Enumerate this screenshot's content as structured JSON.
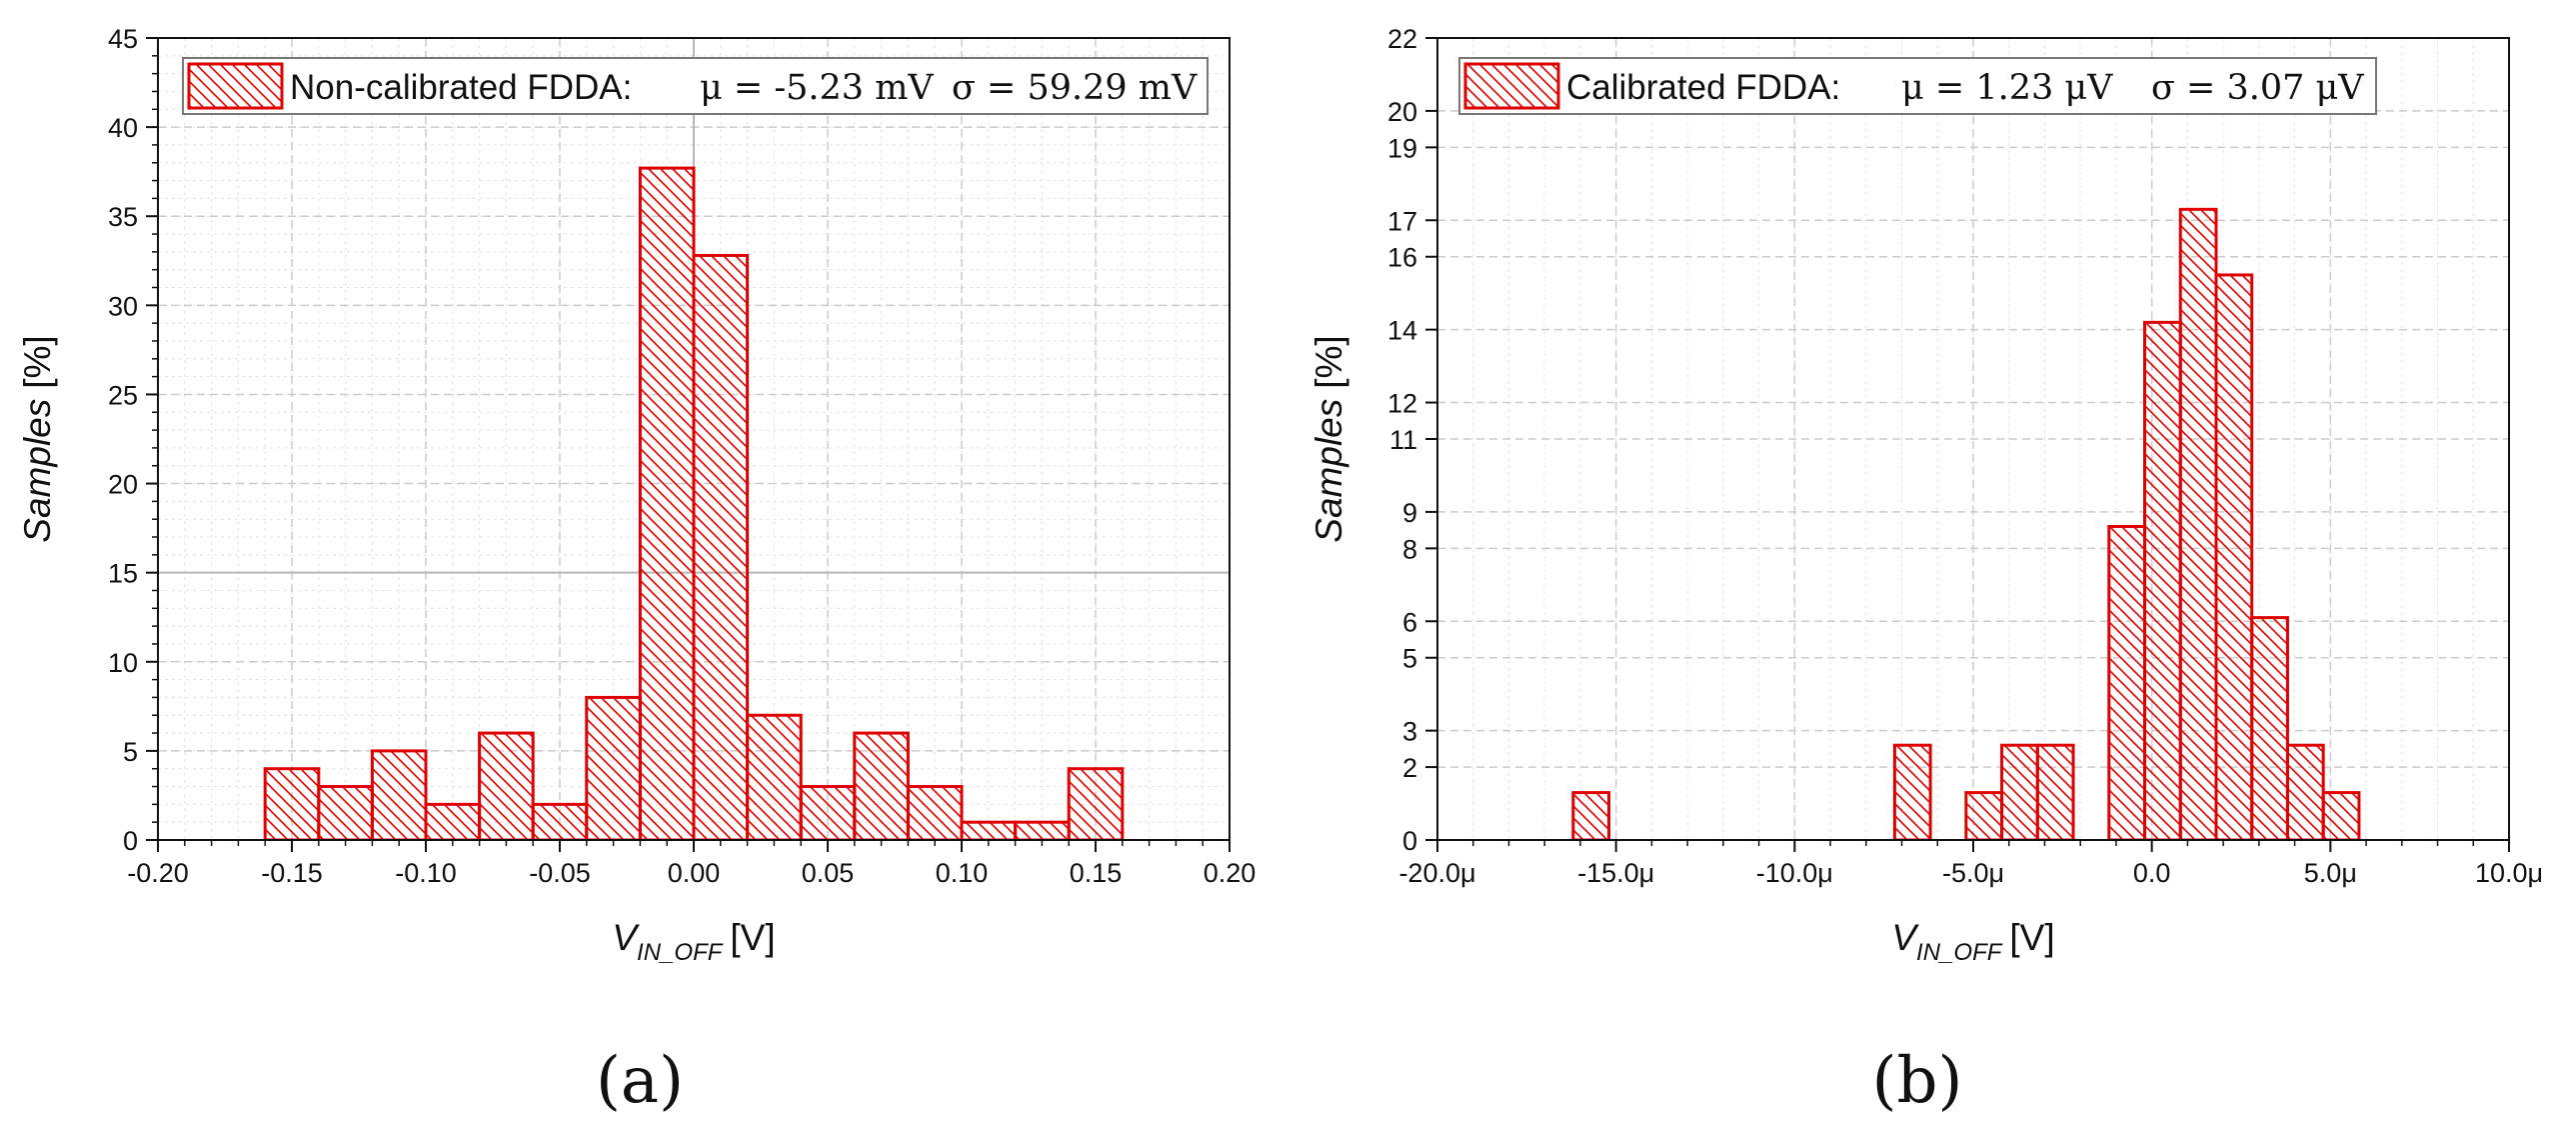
{
  "chart_data": [
    {
      "panel_label": "(a)",
      "type": "bar",
      "series_name": "Non-calibrated FDDA",
      "legend": {
        "name": "Non-calibrated FDDA:",
        "mu": "μ = -5.23 mV",
        "sigma": "σ = 59.29 mV",
        "placement": "top-center"
      },
      "xlabel": {
        "var": "V",
        "sub": "IN_OFF",
        "unit": "[V]"
      },
      "ylabel": {
        "var": "Samples",
        "unit": "[%]"
      },
      "xlim": [
        -0.2,
        0.2
      ],
      "ylim": [
        0,
        45
      ],
      "xticks": [
        {
          "v": -0.2,
          "label": "-0.20"
        },
        {
          "v": -0.15,
          "label": "-0.15"
        },
        {
          "v": -0.1,
          "label": "-0.10"
        },
        {
          "v": -0.05,
          "label": "-0.05"
        },
        {
          "v": 0.0,
          "label": "0.00"
        },
        {
          "v": 0.05,
          "label": "0.05"
        },
        {
          "v": 0.1,
          "label": "0.10"
        },
        {
          "v": 0.15,
          "label": "0.15"
        },
        {
          "v": 0.2,
          "label": "0.20"
        }
      ],
      "yticks": [
        {
          "v": 0,
          "label": "0"
        },
        {
          "v": 5,
          "label": "5"
        },
        {
          "v": 10,
          "label": "10"
        },
        {
          "v": 15,
          "label": "15"
        },
        {
          "v": 20,
          "label": "20"
        },
        {
          "v": 25,
          "label": "25"
        },
        {
          "v": 30,
          "label": "30"
        },
        {
          "v": 35,
          "label": "35"
        },
        {
          "v": 40,
          "label": "40"
        },
        {
          "v": 45,
          "label": "45"
        }
      ],
      "x_minor_step": 0.01,
      "y_minor_step": 1,
      "highlight_gridlines": {
        "x": 0.0,
        "y": 15
      },
      "bins": [
        {
          "x0": -0.16,
          "x1": -0.14,
          "value": 4
        },
        {
          "x0": -0.14,
          "x1": -0.12,
          "value": 3
        },
        {
          "x0": -0.12,
          "x1": -0.1,
          "value": 5
        },
        {
          "x0": -0.1,
          "x1": -0.08,
          "value": 2
        },
        {
          "x0": -0.08,
          "x1": -0.06,
          "value": 6
        },
        {
          "x0": -0.06,
          "x1": -0.04,
          "value": 2
        },
        {
          "x0": -0.04,
          "x1": -0.02,
          "value": 8
        },
        {
          "x0": -0.02,
          "x1": 0.0,
          "value": 37.7
        },
        {
          "x0": 0.0,
          "x1": 0.02,
          "value": 32.8
        },
        {
          "x0": 0.02,
          "x1": 0.04,
          "value": 7
        },
        {
          "x0": 0.04,
          "x1": 0.06,
          "value": 3
        },
        {
          "x0": 0.06,
          "x1": 0.08,
          "value": 6
        },
        {
          "x0": 0.08,
          "x1": 0.1,
          "value": 3
        },
        {
          "x0": 0.1,
          "x1": 0.12,
          "value": 1
        },
        {
          "x0": 0.12,
          "x1": 0.14,
          "value": 1
        },
        {
          "x0": 0.14,
          "x1": 0.16,
          "value": 4
        }
      ]
    },
    {
      "panel_label": "(b)",
      "type": "bar",
      "series_name": "Calibrated FDDA",
      "legend": {
        "name": "Calibrated FDDA:",
        "mu": "μ = 1.23 μV",
        "sigma": "σ = 3.07 μV",
        "placement": "top-left"
      },
      "xlabel": {
        "var": "V",
        "sub": "IN_OFF",
        "unit": "[V]"
      },
      "ylabel": {
        "var": "Samples",
        "unit": "[%]"
      },
      "xlim": [
        -20,
        10
      ],
      "ylim": [
        0,
        22
      ],
      "x_unit_note": "values in microvolts (μ)",
      "xticks": [
        {
          "v": -20,
          "label": "-20.0μ"
        },
        {
          "v": -15,
          "label": "-15.0μ"
        },
        {
          "v": -10,
          "label": "-10.0μ"
        },
        {
          "v": -5,
          "label": "-5.0μ"
        },
        {
          "v": 0,
          "label": "0.0"
        },
        {
          "v": 5,
          "label": "5.0μ"
        },
        {
          "v": 10,
          "label": "10.0μ"
        }
      ],
      "yticks": [
        {
          "v": 0,
          "label": "0"
        },
        {
          "v": 2,
          "label": "2"
        },
        {
          "v": 3,
          "label": "3"
        },
        {
          "v": 5,
          "label": "5"
        },
        {
          "v": 6,
          "label": "6"
        },
        {
          "v": 8,
          "label": "8"
        },
        {
          "v": 9,
          "label": "9"
        },
        {
          "v": 11,
          "label": "11"
        },
        {
          "v": 12,
          "label": "12"
        },
        {
          "v": 14,
          "label": "14"
        },
        {
          "v": 16,
          "label": "16"
        },
        {
          "v": 17,
          "label": "17"
        },
        {
          "v": 19,
          "label": "19"
        },
        {
          "v": 20,
          "label": "20"
        },
        {
          "v": 22,
          "label": "22"
        }
      ],
      "x_minor_step": 1,
      "y_minor_step": null,
      "highlight_gridlines": null,
      "bins": [
        {
          "x0": -16.2,
          "x1": -15.2,
          "value": 1.3
        },
        {
          "x0": -7.2,
          "x1": -6.2,
          "value": 2.6
        },
        {
          "x0": -5.2,
          "x1": -4.2,
          "value": 1.3
        },
        {
          "x0": -4.2,
          "x1": -3.2,
          "value": 2.6
        },
        {
          "x0": -3.2,
          "x1": -2.2,
          "value": 2.6
        },
        {
          "x0": -1.2,
          "x1": -0.2,
          "value": 8.6
        },
        {
          "x0": -0.2,
          "x1": 0.8,
          "value": 14.2
        },
        {
          "x0": 0.8,
          "x1": 1.8,
          "value": 17.3
        },
        {
          "x0": 1.8,
          "x1": 2.8,
          "value": 15.5
        },
        {
          "x0": 2.8,
          "x1": 3.8,
          "value": 6.1
        },
        {
          "x0": 3.8,
          "x1": 4.8,
          "value": 2.6
        },
        {
          "x0": 4.8,
          "x1": 5.8,
          "value": 1.3
        }
      ]
    }
  ],
  "colors": {
    "bar_stroke": "#e00000",
    "hatch": "#e00000",
    "grid_major": "#cccccc",
    "grid_minor": "#e4e4e4",
    "grid_highlight": "#b8b8b8",
    "axis": "#111111",
    "legend_border": "#777777"
  }
}
